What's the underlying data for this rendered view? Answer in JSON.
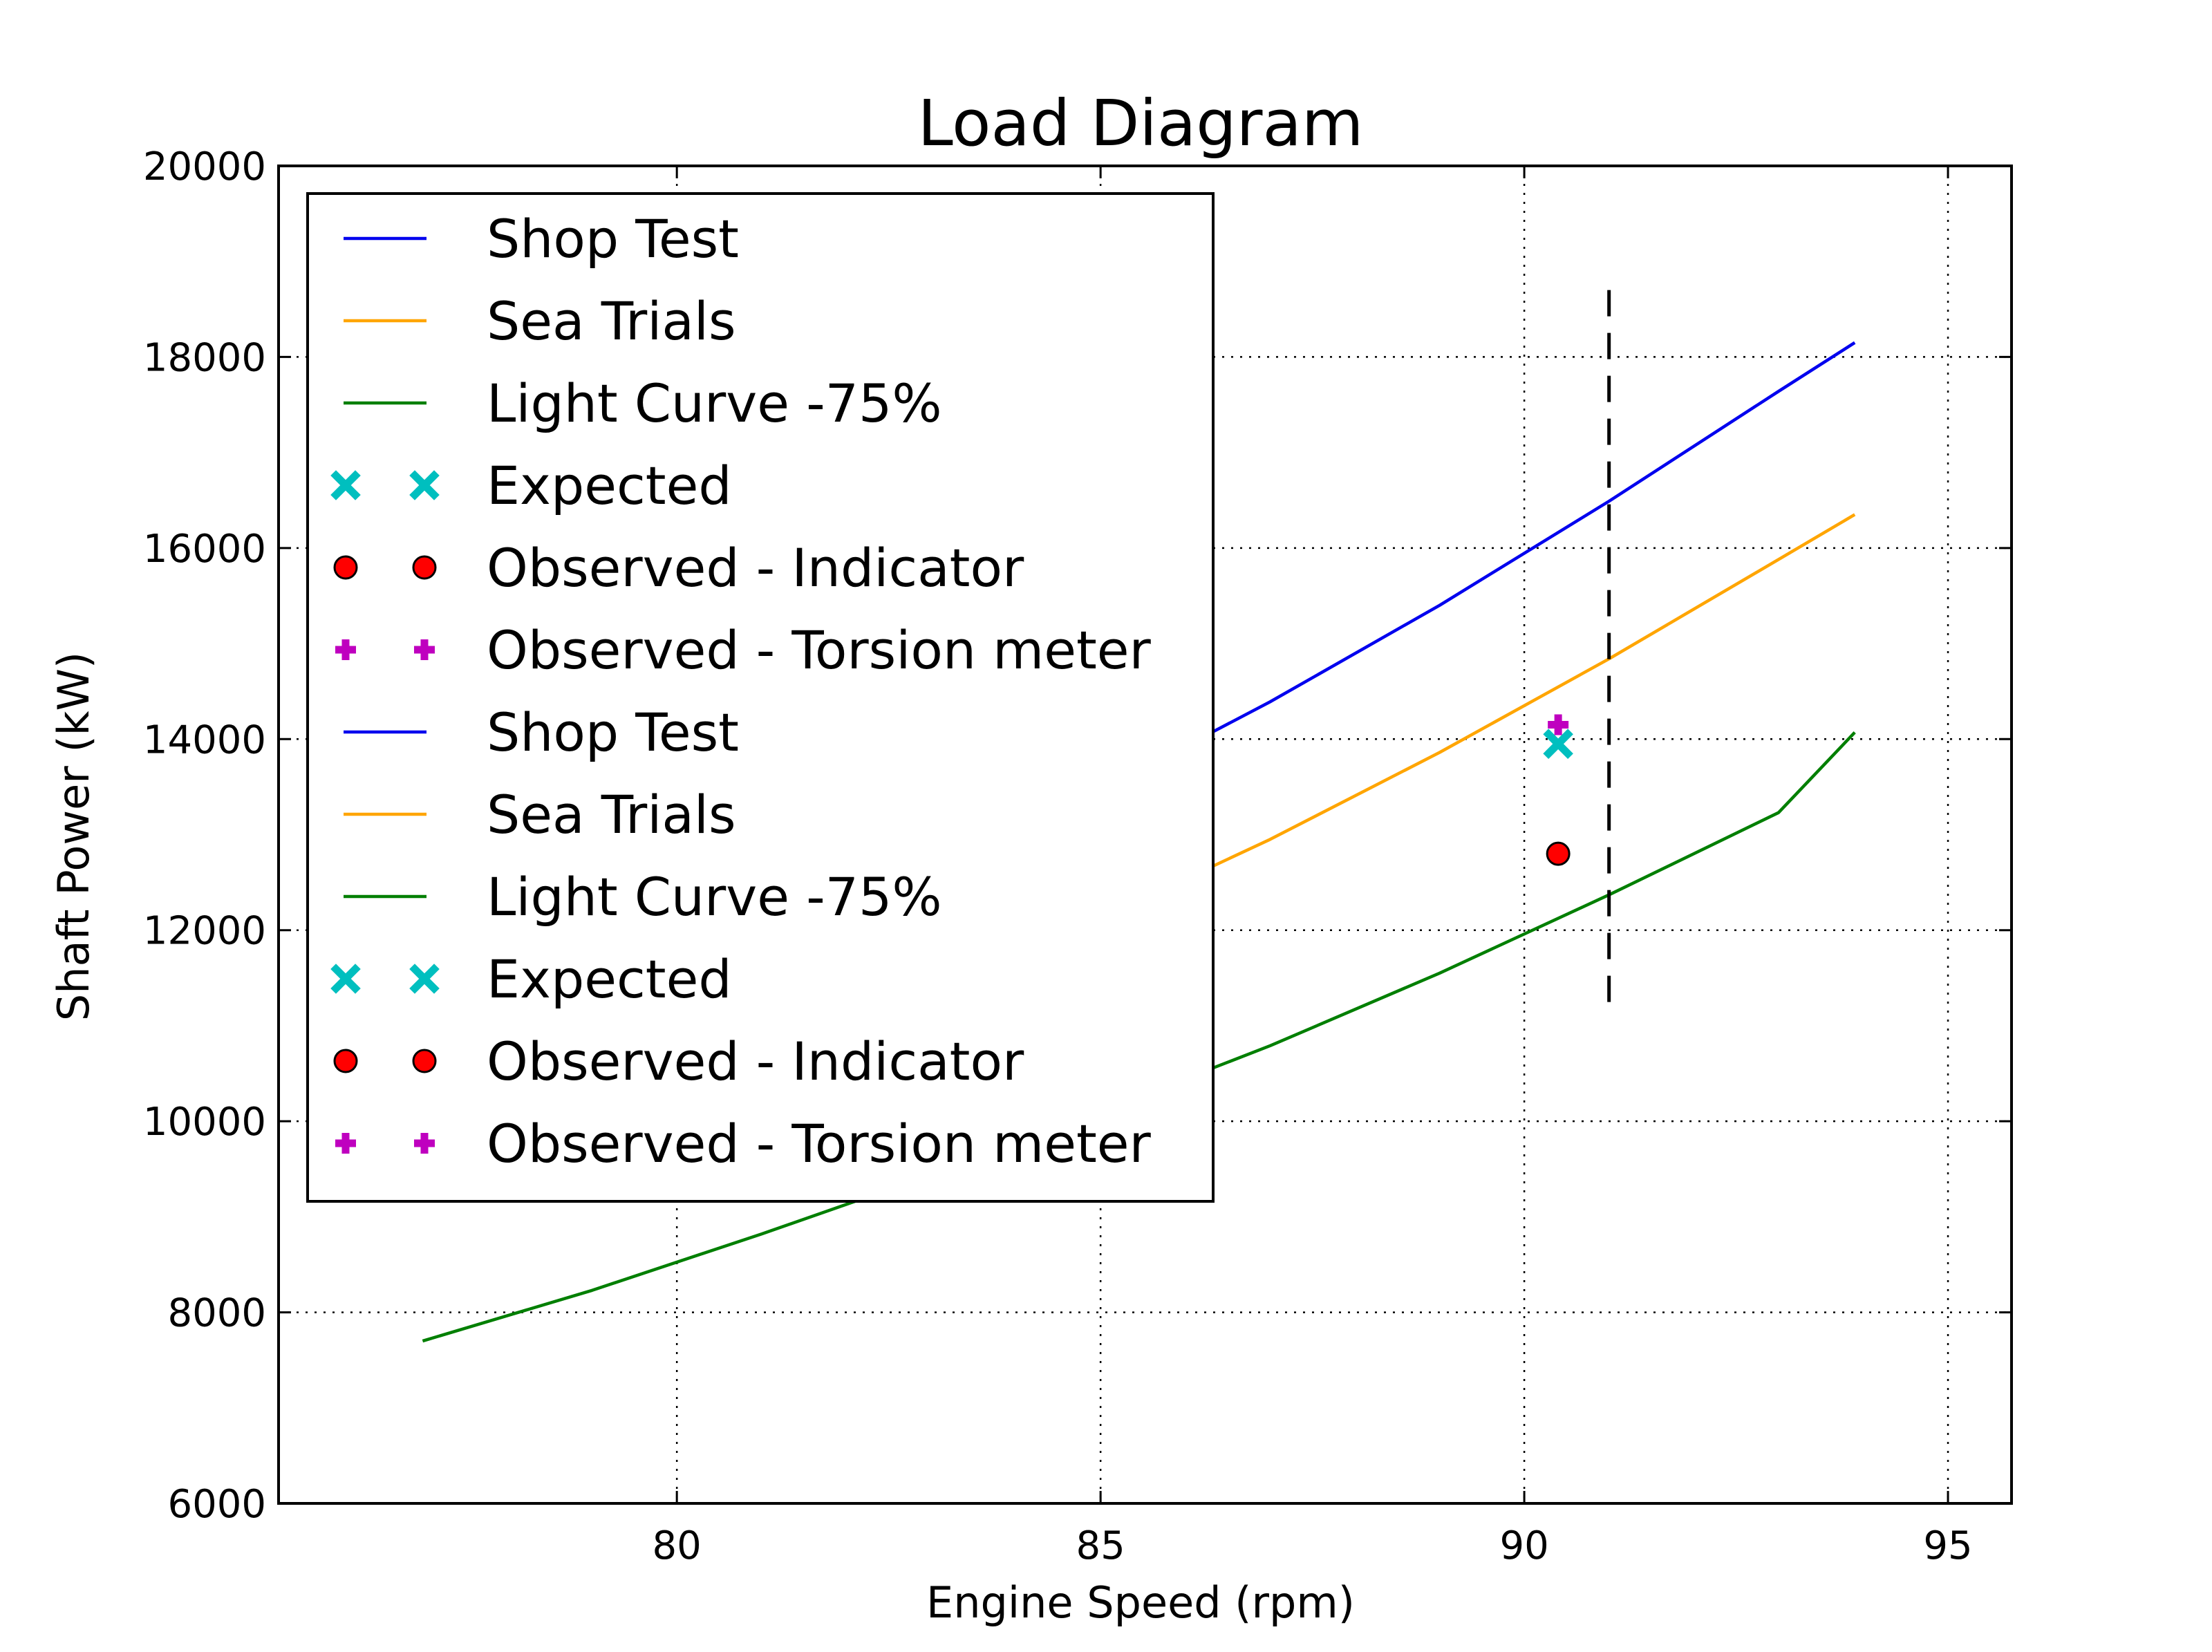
{
  "chart_data": {
    "type": "line",
    "title": "Load Diagram",
    "xlabel": "Engine Speed (rpm)",
    "ylabel": "Shaft Power (kW)",
    "xlim": [
      75.3,
      95.75
    ],
    "ylim": [
      6000,
      20000
    ],
    "xticks": [
      80,
      85,
      90,
      95
    ],
    "yticks": [
      6000,
      8000,
      10000,
      12000,
      14000,
      16000,
      18000,
      20000
    ],
    "grid": true,
    "legend_position": "upper-left",
    "series": [
      {
        "name": "Shop Test",
        "kind": "line",
        "color": "#0000ee",
        "x": [
          77.0,
          79.0,
          81.0,
          83.0,
          85.0,
          87.0,
          89.0,
          91.0,
          93.0,
          93.9
        ],
        "y": [
          10260,
          10980,
          11760,
          12580,
          13460,
          14390,
          15400,
          16490,
          17640,
          18150
        ]
      },
      {
        "name": "Sea Trials",
        "kind": "line",
        "color": "#ffa500",
        "x": [
          77.0,
          79.0,
          81.0,
          83.0,
          85.0,
          87.0,
          89.0,
          91.0,
          93.0,
          93.9
        ],
        "y": [
          9240,
          9880,
          10580,
          11330,
          12120,
          12950,
          13860,
          14840,
          15880,
          16350
        ]
      },
      {
        "name": "Light Curve -75%",
        "kind": "line",
        "color": "#007f00",
        "x": [
          77.0,
          79.0,
          81.0,
          83.0,
          85.0,
          87.0,
          89.0,
          91.0,
          93.0,
          93.9
        ],
        "y": [
          7700,
          8230,
          8820,
          9440,
          10100,
          10790,
          11550,
          12370,
          13230,
          14070
        ]
      },
      {
        "name": "Expected",
        "kind": "marker",
        "marker": "x",
        "color": "#00bfbf",
        "x": [
          90.4
        ],
        "y": [
          13950
        ]
      },
      {
        "name": "Observed - Indicator",
        "kind": "marker",
        "marker": "circle",
        "color": "#ff0000",
        "x": [
          90.4
        ],
        "y": [
          12800
        ]
      },
      {
        "name": "Observed - Torsion meter",
        "kind": "marker",
        "marker": "plus",
        "color": "#bf00bf",
        "x": [
          90.4
        ],
        "y": [
          14150
        ]
      }
    ],
    "reference_line": {
      "style": "dashed",
      "color": "#000000",
      "x": 91.0,
      "y_range": [
        11100,
        18700
      ]
    },
    "legend_entries": [
      "Shop Test",
      "Sea Trials",
      "Light Curve -75%",
      "Expected",
      "Observed - Indicator",
      "Observed - Torsion meter",
      "Shop Test",
      "Sea Trials",
      "Light Curve -75%",
      "Expected",
      "Observed - Indicator",
      "Observed - Torsion meter"
    ]
  }
}
